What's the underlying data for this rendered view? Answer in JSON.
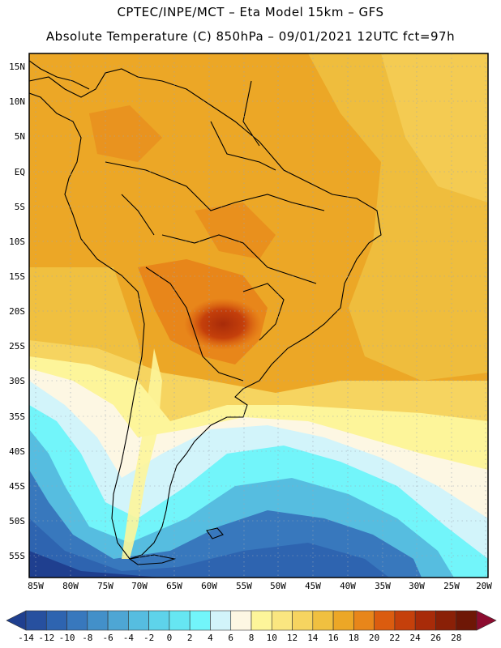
{
  "header": {
    "line1": "CPTEC/INPE/MCT –   Eta Model 15km – GFS",
    "line2": "Absolute Temperature (C) 850hPa – 09/01/2021 12UTC fct=97h"
  },
  "map": {
    "lat_labels": [
      "15N",
      "10N",
      "5N",
      "EQ",
      "5S",
      "10S",
      "15S",
      "20S",
      "25S",
      "30S",
      "35S",
      "40S",
      "45S",
      "50S",
      "55S"
    ],
    "lon_labels": [
      "85W",
      "80W",
      "75W",
      "70W",
      "65W",
      "60W",
      "55W",
      "50W",
      "45W",
      "40W",
      "35W",
      "30W",
      "25W",
      "20W"
    ]
  },
  "colorbar": {
    "labels": [
      "-14",
      "-12",
      "-10",
      "-8",
      "-6",
      "-4",
      "-2",
      "0",
      "2",
      "4",
      "6",
      "8",
      "10",
      "12",
      "14",
      "16",
      "18",
      "20",
      "22",
      "24",
      "26",
      "28"
    ],
    "colors": [
      "#1f3f8f",
      "#27509f",
      "#2e64b0",
      "#3878bd",
      "#4390c9",
      "#4ea6d4",
      "#56bde0",
      "#5ed3ea",
      "#66e6f2",
      "#72f5fa",
      "#d2f4fa",
      "#fdf7e3",
      "#fdf59a",
      "#fae680",
      "#f6d460",
      "#f0c040",
      "#eca726",
      "#e8861a",
      "#db5c0f",
      "#c5400b",
      "#a82b09",
      "#8a2007",
      "#6e1706",
      "#8c0c2f"
    ]
  }
}
